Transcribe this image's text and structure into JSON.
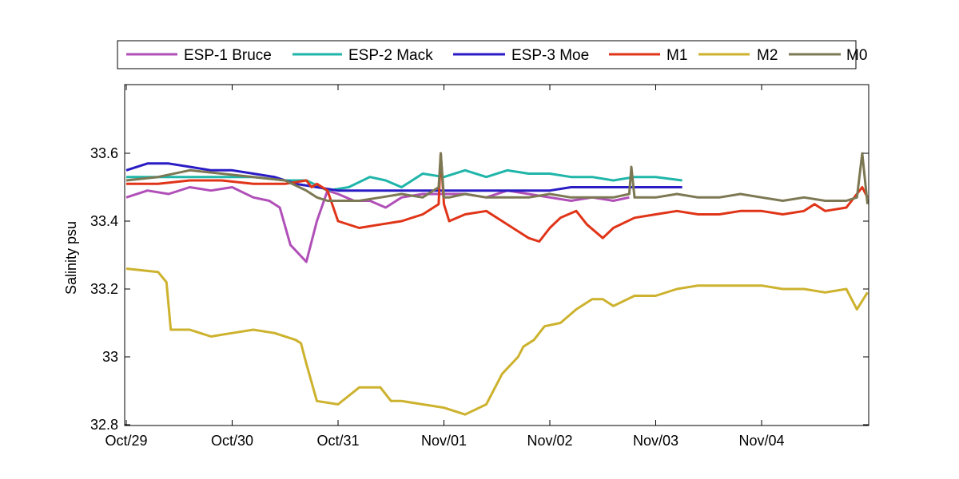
{
  "chart_data": {
    "type": "line",
    "title": "",
    "xlabel": "",
    "ylabel": "Salinity psu",
    "xlim": [
      0,
      7
    ],
    "ylim": [
      32.8,
      33.8
    ],
    "xtick_values": [
      0,
      1,
      2,
      3,
      4,
      5,
      6
    ],
    "xtick_labels": [
      "Oct/29",
      "Oct/30",
      "Oct/31",
      "Nov/01",
      "Nov/02",
      "Nov/03",
      "Nov/04"
    ],
    "ytick_values": [
      32.8,
      33.0,
      33.2,
      33.4,
      33.6
    ],
    "ytick_labels": [
      "32.8",
      "33",
      "33.2",
      "33.4",
      "33.6"
    ],
    "legend_position": "top-outside",
    "grid": false,
    "series": [
      {
        "name": "ESP-1 Bruce",
        "color": "#B04FB8",
        "x": [
          0.0,
          0.2,
          0.4,
          0.6,
          0.8,
          1.0,
          1.2,
          1.35,
          1.45,
          1.55,
          1.7,
          1.8,
          1.9,
          2.0,
          2.15,
          2.3,
          2.45,
          2.6,
          2.8,
          3.0,
          3.2,
          3.4,
          3.6,
          3.8,
          4.0,
          4.2,
          4.4,
          4.6,
          4.75
        ],
        "y": [
          33.47,
          33.49,
          33.48,
          33.5,
          33.49,
          33.5,
          33.47,
          33.46,
          33.44,
          33.33,
          33.28,
          33.4,
          33.49,
          33.48,
          33.46,
          33.46,
          33.44,
          33.47,
          33.48,
          33.48,
          33.48,
          33.47,
          33.49,
          33.48,
          33.47,
          33.46,
          33.47,
          33.46,
          33.47
        ]
      },
      {
        "name": "ESP-2 Mack",
        "color": "#1FB5A9",
        "x": [
          0.0,
          0.3,
          0.6,
          0.9,
          1.2,
          1.5,
          1.7,
          1.9,
          2.1,
          2.3,
          2.45,
          2.6,
          2.8,
          3.0,
          3.2,
          3.4,
          3.6,
          3.8,
          4.0,
          4.2,
          4.4,
          4.6,
          4.8,
          5.0,
          5.25
        ],
        "y": [
          33.53,
          33.53,
          33.53,
          33.53,
          33.53,
          33.52,
          33.52,
          33.49,
          33.5,
          33.53,
          33.52,
          33.5,
          33.54,
          33.53,
          33.55,
          33.53,
          33.55,
          33.54,
          33.54,
          33.53,
          33.53,
          33.52,
          33.53,
          33.53,
          33.52
        ]
      },
      {
        "name": "ESP-3 Moe",
        "color": "#2A1CC4",
        "x": [
          0.0,
          0.2,
          0.4,
          0.6,
          0.8,
          1.0,
          1.2,
          1.4,
          1.6,
          1.8,
          2.0,
          2.2,
          2.4,
          2.6,
          2.8,
          3.0,
          3.2,
          3.4,
          3.6,
          3.8,
          4.0,
          4.2,
          4.4,
          4.6,
          4.8,
          5.0,
          5.25
        ],
        "y": [
          33.55,
          33.57,
          33.57,
          33.56,
          33.55,
          33.55,
          33.54,
          33.53,
          33.51,
          33.5,
          33.49,
          33.49,
          33.49,
          33.49,
          33.49,
          33.49,
          33.49,
          33.49,
          33.49,
          33.49,
          33.49,
          33.5,
          33.5,
          33.5,
          33.5,
          33.5,
          33.5
        ]
      },
      {
        "name": "M1",
        "color": "#E03418",
        "x": [
          0.0,
          0.3,
          0.6,
          0.9,
          1.2,
          1.5,
          1.7,
          1.75,
          1.8,
          1.9,
          2.0,
          2.2,
          2.4,
          2.6,
          2.8,
          2.95,
          2.97,
          3.0,
          3.05,
          3.2,
          3.4,
          3.55,
          3.7,
          3.8,
          3.9,
          4.0,
          4.1,
          4.25,
          4.35,
          4.5,
          4.6,
          4.8,
          5.0,
          5.2,
          5.4,
          5.6,
          5.8,
          6.0,
          6.2,
          6.4,
          6.5,
          6.6,
          6.8,
          6.95,
          7.0
        ],
        "y": [
          33.51,
          33.51,
          33.52,
          33.52,
          33.51,
          33.51,
          33.52,
          33.5,
          33.51,
          33.49,
          33.4,
          33.38,
          33.39,
          33.4,
          33.42,
          33.45,
          33.6,
          33.45,
          33.4,
          33.42,
          33.43,
          33.4,
          33.37,
          33.35,
          33.34,
          33.38,
          33.41,
          33.43,
          33.39,
          33.35,
          33.38,
          33.41,
          33.42,
          33.43,
          33.42,
          33.42,
          33.43,
          33.43,
          33.42,
          33.43,
          33.45,
          33.43,
          33.44,
          33.5,
          33.47
        ]
      },
      {
        "name": "M2",
        "color": "#CDB22E",
        "x": [
          0.0,
          0.3,
          0.38,
          0.42,
          0.6,
          0.8,
          1.0,
          1.2,
          1.4,
          1.6,
          1.65,
          1.7,
          1.8,
          2.0,
          2.2,
          2.4,
          2.5,
          2.6,
          2.8,
          3.0,
          3.2,
          3.4,
          3.55,
          3.7,
          3.75,
          3.85,
          3.95,
          4.1,
          4.25,
          4.4,
          4.5,
          4.6,
          4.8,
          5.0,
          5.2,
          5.4,
          5.6,
          5.8,
          6.0,
          6.2,
          6.4,
          6.6,
          6.8,
          6.9,
          7.0
        ],
        "y": [
          33.26,
          33.25,
          33.22,
          33.08,
          33.08,
          33.06,
          33.07,
          33.08,
          33.07,
          33.05,
          33.04,
          32.98,
          32.87,
          32.86,
          32.91,
          32.91,
          32.87,
          32.87,
          32.86,
          32.85,
          32.83,
          32.86,
          32.95,
          33.0,
          33.03,
          33.05,
          33.09,
          33.1,
          33.14,
          33.17,
          33.17,
          33.15,
          33.18,
          33.18,
          33.2,
          33.21,
          33.21,
          33.21,
          33.21,
          33.2,
          33.2,
          33.19,
          33.2,
          33.14,
          33.19
        ]
      },
      {
        "name": "M0",
        "color": "#7C7853",
        "x": [
          0.0,
          0.3,
          0.6,
          0.9,
          1.2,
          1.5,
          1.7,
          1.8,
          1.9,
          2.0,
          2.2,
          2.4,
          2.6,
          2.8,
          2.95,
          2.97,
          3.0,
          3.05,
          3.2,
          3.4,
          3.6,
          3.8,
          4.0,
          4.2,
          4.4,
          4.6,
          4.75,
          4.77,
          4.8,
          5.0,
          5.2,
          5.4,
          5.6,
          5.8,
          6.0,
          6.2,
          6.4,
          6.6,
          6.8,
          6.9,
          6.95,
          7.0
        ],
        "y": [
          33.52,
          33.53,
          33.55,
          33.54,
          33.53,
          33.52,
          33.49,
          33.47,
          33.46,
          33.46,
          33.46,
          33.47,
          33.48,
          33.47,
          33.5,
          33.6,
          33.47,
          33.47,
          33.48,
          33.47,
          33.47,
          33.47,
          33.48,
          33.47,
          33.47,
          33.47,
          33.48,
          33.56,
          33.47,
          33.47,
          33.48,
          33.47,
          33.47,
          33.48,
          33.47,
          33.46,
          33.47,
          33.46,
          33.46,
          33.47,
          33.6,
          33.45
        ]
      }
    ]
  }
}
